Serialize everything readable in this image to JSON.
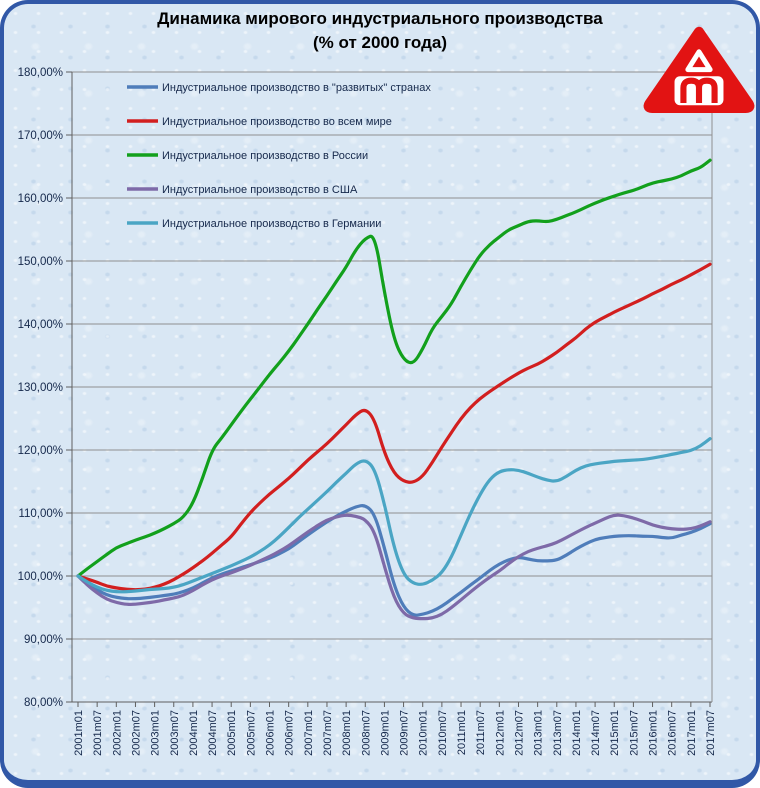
{
  "title": {
    "line1": "Динамика мирового индустриального производства",
    "line2": "(% от 2000 года)"
  },
  "logo": {
    "name": "aftershock-red-triangle-logo",
    "color": "#e21313"
  },
  "chart_data": {
    "type": "line",
    "title": "Динамика мирового индустриального производства",
    "subtitle": "(% от 2000 года)",
    "grid": true,
    "legend_position": "top-left-inside",
    "y_axis": {
      "min": 80,
      "max": 180,
      "tick_step": 10,
      "tick_labels": [
        "180,00%",
        "170,00%",
        "160,00%",
        "150,00%",
        "140,00%",
        "130,00%",
        "120,00%",
        "110,00%",
        "100,00%",
        "90,00%",
        "80,00%"
      ],
      "tick_values": [
        180,
        170,
        160,
        150,
        140,
        130,
        120,
        110,
        100,
        90,
        80
      ]
    },
    "x_axis": {
      "start": "2001m01",
      "end": "2017m07",
      "data_step_months": 3,
      "tick_labels": [
        "2001m01",
        "2001m07",
        "2002m01",
        "2002m07",
        "2003m01",
        "2003m07",
        "2004m01",
        "2004m07",
        "2005m01",
        "2005m07",
        "2006m01",
        "2006m07",
        "2007m01",
        "2007m07",
        "2008m01",
        "2008m07",
        "2009m01",
        "2009m07",
        "2010m01",
        "2010m07",
        "2011m01",
        "2011m07",
        "2012m01",
        "2012m07",
        "2013m01",
        "2013m07",
        "2014m01",
        "2014m07",
        "2015m01",
        "2015m07",
        "2016m01",
        "2016m07",
        "2017m01",
        "2017m07"
      ]
    },
    "series": [
      {
        "name": "Индустриальное производство в \"развитых\" странах",
        "color": "#4f7dba",
        "values": [
          100,
          98.8,
          97.8,
          97,
          96.6,
          96.4,
          96.4,
          96.5,
          96.7,
          96.9,
          97.1,
          97.5,
          98.1,
          98.9,
          99.7,
          100.3,
          100.8,
          101.3,
          101.8,
          102.3,
          102.8,
          103.5,
          104.3,
          105.4,
          106.5,
          107.6,
          108.6,
          109.5,
          110.3,
          111,
          111.3,
          109.8,
          104.5,
          98.5,
          95,
          93.7,
          93.9,
          94.4,
          95.2,
          96.3,
          97.4,
          98.6,
          99.7,
          100.9,
          101.9,
          102.6,
          103,
          102.7,
          102.4,
          102.4,
          102.5,
          103.3,
          104.3,
          105.1,
          105.8,
          106.1,
          106.3,
          106.4,
          106.4,
          106.3,
          106.3,
          106.1,
          106,
          106.5,
          106.9,
          107.5,
          108.3
        ]
      },
      {
        "name": "Индустриальное производство во всем мире",
        "color": "#d21f1f",
        "values": [
          100,
          99.5,
          99,
          98.4,
          98.1,
          97.9,
          97.8,
          97.9,
          98.2,
          98.7,
          99.4,
          100.3,
          101.3,
          102.4,
          103.6,
          104.9,
          106.2,
          108.2,
          110.1,
          111.6,
          113,
          114.2,
          115.5,
          116.9,
          118.4,
          119.7,
          121,
          122.5,
          124,
          125.6,
          126.6,
          124.8,
          119.5,
          116.3,
          115,
          114.8,
          115.8,
          118,
          120.5,
          122.8,
          125,
          126.8,
          128.2,
          129.3,
          130.3,
          131.3,
          132.2,
          133,
          133.6,
          134.5,
          135.5,
          136.7,
          137.8,
          139.2,
          140.3,
          141.1,
          141.9,
          142.6,
          143.3,
          144,
          144.8,
          145.5,
          146.3,
          147,
          147.8,
          148.6,
          149.5
        ]
      },
      {
        "name": "Индустриальное производство в России",
        "color": "#12a01c",
        "values": [
          100,
          101.2,
          102.3,
          103.4,
          104.5,
          105.1,
          105.7,
          106.2,
          106.8,
          107.5,
          108.3,
          109.3,
          111.5,
          115.5,
          120,
          121.9,
          124,
          126.1,
          128.1,
          130,
          132,
          133.8,
          135.7,
          137.8,
          140,
          142.3,
          144.5,
          146.8,
          149,
          151.8,
          153.6,
          154.2,
          145,
          137.5,
          134.3,
          133.6,
          136,
          139.3,
          141.2,
          143.2,
          146,
          148.6,
          151,
          152.6,
          153.8,
          155,
          155.6,
          156.3,
          156.4,
          156.2,
          156.6,
          157.2,
          157.8,
          158.5,
          159.2,
          159.8,
          160.3,
          160.8,
          161.2,
          161.8,
          162.4,
          162.7,
          163,
          163.5,
          164.3,
          164.8,
          166
        ]
      },
      {
        "name": "Индустриальное производство в США",
        "color": "#7e6aa8",
        "values": [
          100,
          98.5,
          97.3,
          96.3,
          95.8,
          95.5,
          95.5,
          95.7,
          95.9,
          96.2,
          96.5,
          96.9,
          97.7,
          98.6,
          99.4,
          100,
          100.5,
          101.1,
          101.7,
          102.4,
          103.1,
          103.9,
          104.8,
          105.9,
          107,
          108,
          108.9,
          109.4,
          109.7,
          109.5,
          109,
          107,
          101.5,
          96.5,
          94,
          93.3,
          93.2,
          93.3,
          93.9,
          95,
          96.2,
          97.5,
          98.7,
          99.8,
          100.8,
          102,
          103.1,
          103.9,
          104.4,
          104.8,
          105.3,
          106.1,
          106.9,
          107.7,
          108.4,
          109.1,
          109.7,
          109.6,
          109.2,
          108.7,
          108.1,
          107.7,
          107.5,
          107.4,
          107.5,
          107.9,
          108.6
        ]
      },
      {
        "name": "Индустриальное производство в Германии",
        "color": "#4aa5c4",
        "values": [
          100,
          99,
          98.2,
          97.7,
          97.5,
          97.5,
          97.6,
          97.8,
          97.9,
          98,
          98.2,
          98.6,
          99.2,
          99.8,
          100.4,
          101,
          101.6,
          102.3,
          103,
          103.9,
          104.9,
          106.2,
          107.7,
          109.2,
          110.6,
          112,
          113.4,
          114.9,
          116.3,
          117.8,
          118.5,
          117,
          111.5,
          104.5,
          100.2,
          98.8,
          98.6,
          99.3,
          100.5,
          103,
          106.5,
          110,
          113,
          115.4,
          116.6,
          116.9,
          116.8,
          116.3,
          115.7,
          115.2,
          115,
          115.8,
          116.8,
          117.5,
          117.8,
          118,
          118.2,
          118.3,
          118.4,
          118.5,
          118.7,
          119,
          119.3,
          119.6,
          119.9,
          120.6,
          121.8
        ]
      }
    ]
  }
}
